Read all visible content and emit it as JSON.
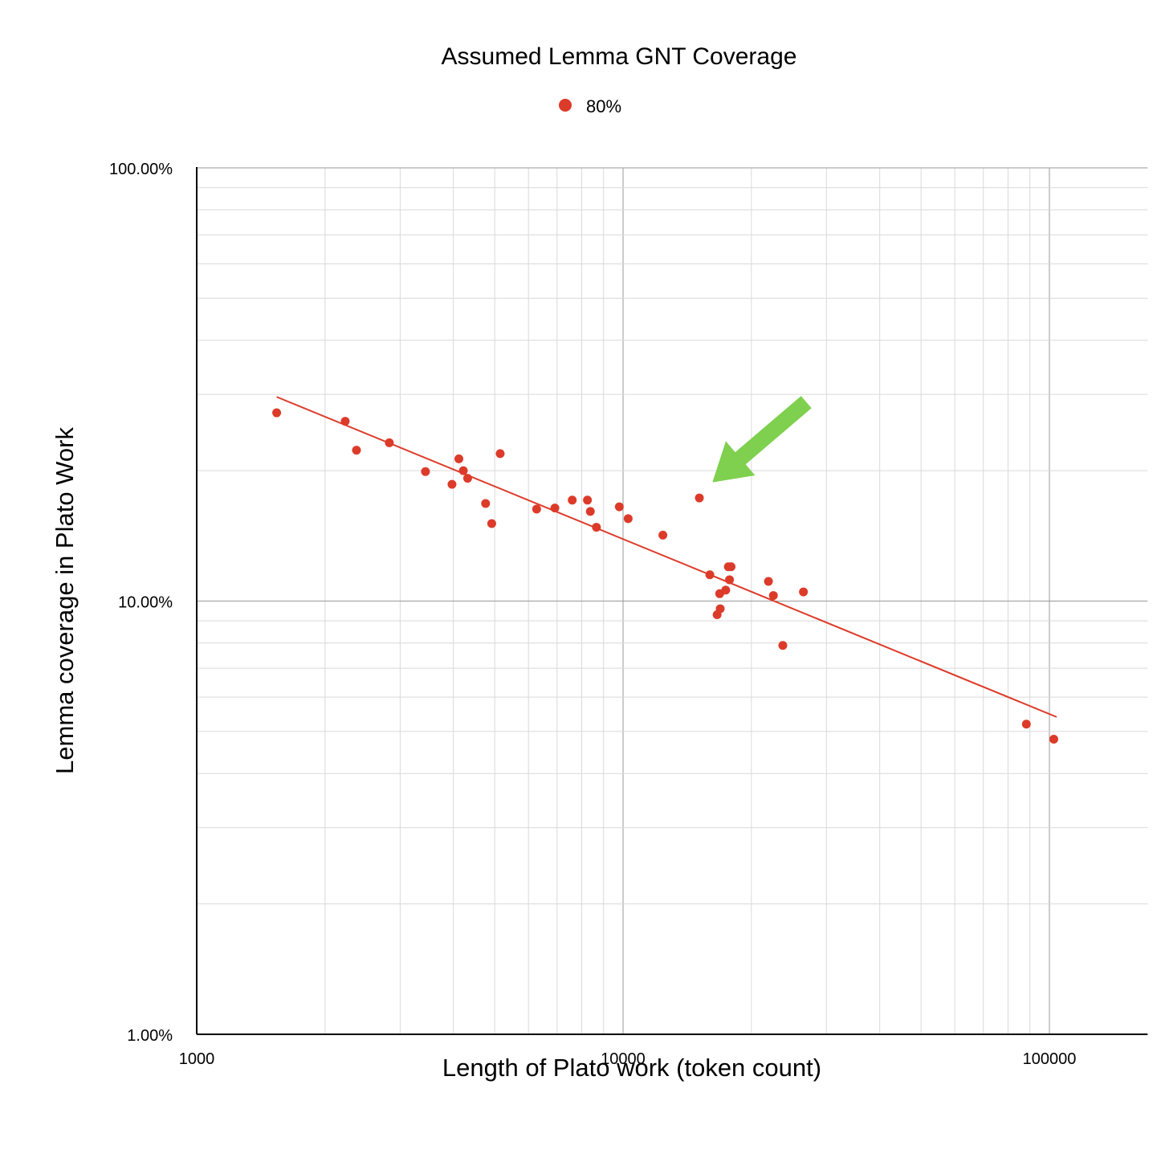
{
  "chart_data": {
    "type": "scatter",
    "title": "Assumed Lemma GNT Coverage",
    "xlabel": "Length of Plato work (token count)",
    "ylabel": "Lemma coverage in Plato Work",
    "x_scale": "log",
    "y_scale": "log",
    "xlim": [
      1000,
      170000
    ],
    "ylim": [
      1.0,
      100.0
    ],
    "x_ticks": [
      "1000",
      "10000",
      "100000"
    ],
    "y_ticks": [
      "1.00%",
      "10.00%",
      "100.00%"
    ],
    "grid": true,
    "legend_position": "top-center",
    "colors": {
      "series": "#dc3b2a",
      "trendline": "#dc3b2a",
      "annotation_arrow": "#7ed04e",
      "grid_major": "#9a9a9a",
      "grid_minor": "#d9d9d9",
      "axis": "#000000"
    },
    "series": [
      {
        "name": "80%",
        "points": [
          {
            "x": 1540,
            "y": 27.2
          },
          {
            "x": 2230,
            "y": 26.0
          },
          {
            "x": 2370,
            "y": 22.3
          },
          {
            "x": 2830,
            "y": 23.2
          },
          {
            "x": 3440,
            "y": 19.9
          },
          {
            "x": 3970,
            "y": 18.6
          },
          {
            "x": 4120,
            "y": 21.3
          },
          {
            "x": 4220,
            "y": 20.0
          },
          {
            "x": 4320,
            "y": 19.2
          },
          {
            "x": 4760,
            "y": 16.8
          },
          {
            "x": 4920,
            "y": 15.1
          },
          {
            "x": 5150,
            "y": 21.9
          },
          {
            "x": 6270,
            "y": 16.3
          },
          {
            "x": 6920,
            "y": 16.4
          },
          {
            "x": 7600,
            "y": 17.1
          },
          {
            "x": 8250,
            "y": 17.1
          },
          {
            "x": 8380,
            "y": 16.1
          },
          {
            "x": 8660,
            "y": 14.8
          },
          {
            "x": 9800,
            "y": 16.5
          },
          {
            "x": 10280,
            "y": 15.5
          },
          {
            "x": 12400,
            "y": 14.2
          },
          {
            "x": 15100,
            "y": 17.3
          },
          {
            "x": 15980,
            "y": 11.5
          },
          {
            "x": 16620,
            "y": 9.3
          },
          {
            "x": 16850,
            "y": 10.4
          },
          {
            "x": 16900,
            "y": 9.6
          },
          {
            "x": 17410,
            "y": 10.6
          },
          {
            "x": 17660,
            "y": 12.0
          },
          {
            "x": 17770,
            "y": 11.2
          },
          {
            "x": 17920,
            "y": 12.0
          },
          {
            "x": 21930,
            "y": 11.1
          },
          {
            "x": 22520,
            "y": 10.3
          },
          {
            "x": 23700,
            "y": 7.9
          },
          {
            "x": 26490,
            "y": 10.5
          },
          {
            "x": 88300,
            "y": 5.2
          },
          {
            "x": 102400,
            "y": 4.8
          }
        ]
      }
    ],
    "trendline": {
      "x_start": 1540,
      "y_start": 29.6,
      "x_end": 104000,
      "y_end": 5.4
    },
    "annotation_arrow": {
      "from": {
        "x": 26900,
        "y": 28.8
      },
      "to": {
        "x": 16200,
        "y": 18.8
      }
    }
  }
}
